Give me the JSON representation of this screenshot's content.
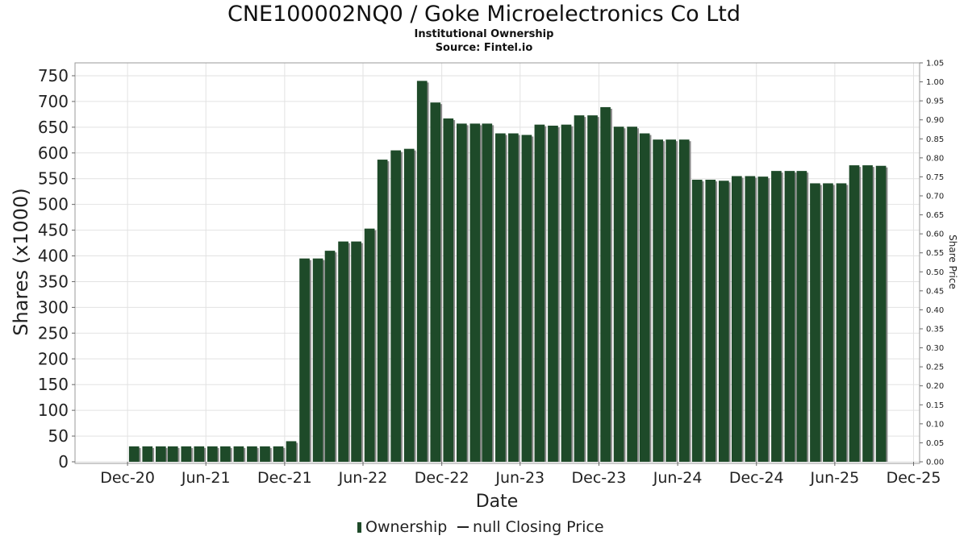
{
  "title": "CNE100002NQ0 / Goke Microelectronics Co Ltd",
  "subtitle": "Institutional Ownership",
  "source": "Source: Fintel.io",
  "colors": {
    "bar": "#1e4a29",
    "bar_shadow": "#8a8a8a",
    "grid": "#e2e2e2",
    "plot_border": "#9a9a9a"
  },
  "chart_data": {
    "type": "bar",
    "xlabel": "Date",
    "ylabel": "Shares (x1000)",
    "y2label": "Share Price",
    "ylim": [
      0,
      775
    ],
    "y2lim": [
      0,
      1.05
    ],
    "y_ticks": [
      "0",
      "50",
      "100",
      "150",
      "200",
      "250",
      "300",
      "350",
      "400",
      "450",
      "500",
      "550",
      "600",
      "650",
      "700",
      "750"
    ],
    "y2_ticks": [
      "0.00",
      "0.05",
      "0.10",
      "0.15",
      "0.20",
      "0.25",
      "0.30",
      "0.35",
      "0.40",
      "0.45",
      "0.50",
      "0.55",
      "0.60",
      "0.65",
      "0.70",
      "0.75",
      "0.80",
      "0.85",
      "0.90",
      "0.95",
      "1.00",
      "1.05"
    ],
    "x_ticks": [
      {
        "date": "2020-12-01",
        "label": "Dec-20"
      },
      {
        "date": "2021-06-01",
        "label": "Jun-21"
      },
      {
        "date": "2021-12-01",
        "label": "Dec-21"
      },
      {
        "date": "2022-06-01",
        "label": "Jun-22"
      },
      {
        "date": "2022-12-01",
        "label": "Dec-22"
      },
      {
        "date": "2023-06-01",
        "label": "Jun-23"
      },
      {
        "date": "2023-12-01",
        "label": "Dec-23"
      },
      {
        "date": "2024-06-01",
        "label": "Jun-24"
      },
      {
        "date": "2024-12-01",
        "label": "Dec-24"
      },
      {
        "date": "2025-06-01",
        "label": "Jun-25"
      },
      {
        "date": "2025-12-01",
        "label": "Dec-25"
      }
    ],
    "x_range": [
      "2020-08-01",
      "2025-12-15"
    ],
    "grid": true,
    "legend": {
      "position": "bottom-center",
      "items": [
        {
          "label": "Ownership",
          "marker": "bar"
        },
        {
          "label": "null Closing Price",
          "marker": "line"
        }
      ]
    },
    "series": [
      {
        "name": "Ownership",
        "dates": [
          "2020-12-01",
          "2021-01-01",
          "2021-02-01",
          "2021-03-01",
          "2021-04-01",
          "2021-05-01",
          "2021-06-01",
          "2021-07-01",
          "2021-08-01",
          "2021-09-01",
          "2021-10-01",
          "2021-11-01",
          "2021-12-01",
          "2022-01-01",
          "2022-02-01",
          "2022-03-01",
          "2022-04-01",
          "2022-05-01",
          "2022-06-01",
          "2022-07-01",
          "2022-08-01",
          "2022-09-01",
          "2022-10-01",
          "2022-11-01",
          "2022-12-01",
          "2023-01-01",
          "2023-02-01",
          "2023-03-01",
          "2023-04-01",
          "2023-05-01",
          "2023-06-01",
          "2023-07-01",
          "2023-08-01",
          "2023-09-01",
          "2023-10-01",
          "2023-11-01",
          "2023-12-01",
          "2024-01-01",
          "2024-02-01",
          "2024-03-01",
          "2024-04-01",
          "2024-05-01",
          "2024-06-01",
          "2024-07-01",
          "2024-08-01",
          "2024-09-01",
          "2024-10-01",
          "2024-11-01",
          "2024-12-01",
          "2025-01-01",
          "2025-02-01",
          "2025-03-01",
          "2025-04-01",
          "2025-05-01",
          "2025-06-01",
          "2025-07-01",
          "2025-08-01",
          "2025-09-01"
        ],
        "values": [
          30,
          30,
          30,
          30,
          30,
          30,
          30,
          30,
          30,
          30,
          30,
          30,
          40,
          395,
          395,
          410,
          428,
          428,
          453,
          587,
          605,
          608,
          740,
          698,
          667,
          657,
          657,
          657,
          638,
          638,
          635,
          655,
          653,
          655,
          673,
          673,
          689,
          651,
          651,
          638,
          626,
          626,
          626,
          548,
          548,
          546,
          555,
          555,
          554,
          565,
          565,
          565,
          541,
          541,
          541,
          576,
          576,
          575
        ]
      }
    ]
  }
}
